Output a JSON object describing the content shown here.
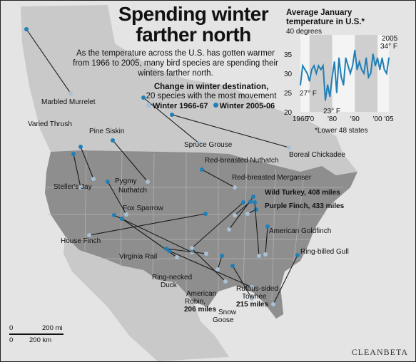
{
  "title_line1": "Spending winter",
  "title_line2": "farther north",
  "subtitle": "As the temperature across the U.S. has gotten warmer from 1966 to 2005, many bird species are spending their winters farther north.",
  "change_title": "Change in winter destination,",
  "change_subtitle": "20 species with the most movement",
  "legend": {
    "old_label": "Winter 1966-67",
    "new_label": "Winter 2005-06",
    "old_color": "#a9bfd3",
    "new_color": "#1f7fb6"
  },
  "inset": {
    "title_line1": "Average January",
    "title_line2": "temperature in U.S.*",
    "ymax_label": "40 degrees",
    "yticks": [
      "35",
      "30",
      "25",
      "20"
    ],
    "xticks": [
      "1966",
      "'70",
      "'80",
      "'90",
      "'00",
      "'05"
    ],
    "note": "*Lower 48 states",
    "callout_2005": "2005",
    "callout_34": "34° F",
    "callout_27": "27° F",
    "callout_23": "23° F"
  },
  "chart_data": {
    "type": "line",
    "title": "Average January temperature in U.S.*",
    "ylabel": "40 degrees",
    "ylim": [
      20,
      40
    ],
    "x": [
      1966,
      1967,
      1968,
      1969,
      1970,
      1971,
      1972,
      1973,
      1974,
      1975,
      1976,
      1977,
      1978,
      1979,
      1980,
      1981,
      1982,
      1983,
      1984,
      1985,
      1986,
      1987,
      1988,
      1989,
      1990,
      1991,
      1992,
      1993,
      1994,
      1995,
      1996,
      1997,
      1998,
      1999,
      2000,
      2001,
      2002,
      2003,
      2004,
      2005
    ],
    "series": [
      {
        "values": [
          27,
          32,
          31,
          30,
          28,
          31,
          32,
          30,
          32,
          31,
          32,
          23,
          27,
          24,
          29,
          33,
          25,
          34,
          29,
          27,
          34,
          32,
          30,
          32,
          36,
          31,
          33,
          31,
          30,
          34,
          29,
          30,
          35,
          32,
          34,
          31,
          34,
          31,
          30,
          34
        ]
      }
    ],
    "color": "#1f7fb6"
  },
  "species": [
    {
      "name": "Marbled Murrelet"
    },
    {
      "name": "Varied Thrush"
    },
    {
      "name": "Pine Siskin"
    },
    {
      "name": "Spruce Grouse"
    },
    {
      "name": "Boreal Chickadee"
    },
    {
      "name": "Red-breasted Nuthatch"
    },
    {
      "name": "Red-breasted Merganser"
    },
    {
      "name": "Wild Turkey, 408 miles"
    },
    {
      "name": "Purple Finch, 433 miles"
    },
    {
      "name": "American Goldfinch"
    },
    {
      "name": "Ring-billed Gull"
    },
    {
      "name": "Steller's Jay"
    },
    {
      "name": "Pygmy"
    },
    {
      "name": "Nuthatch"
    },
    {
      "name": "Fox Sparrow"
    },
    {
      "name": "House Finch"
    },
    {
      "name": "Virginia Rail"
    },
    {
      "name": "Ring-necked"
    },
    {
      "name": "Duck"
    },
    {
      "name": "American"
    },
    {
      "name": "Robin,"
    },
    {
      "name": "206 miles"
    },
    {
      "name": "Rufous-sided"
    },
    {
      "name": "Towhee"
    },
    {
      "name": "215 miles"
    },
    {
      "name": "Snow"
    },
    {
      "name": "Goose"
    }
  ],
  "scale": {
    "mi_zero": "0",
    "mi_label": "200 mi",
    "km_zero": "0",
    "km_label": "200 km"
  },
  "watermark": "CLEANBETA"
}
